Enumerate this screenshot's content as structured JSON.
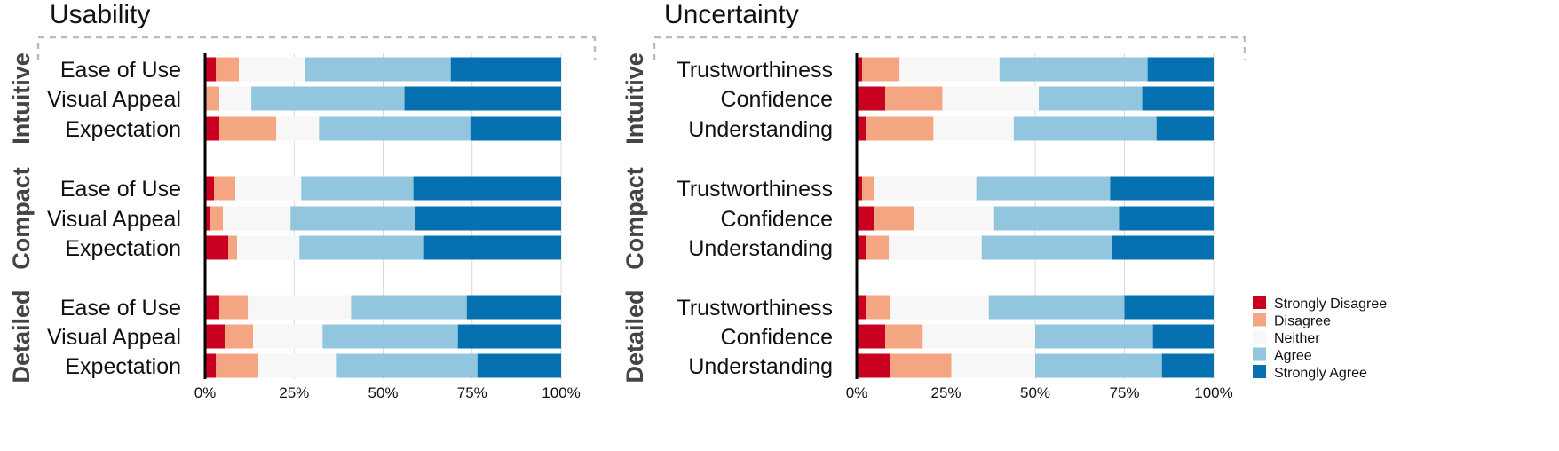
{
  "chart_data": [
    {
      "type": "bar",
      "orientation": "horizontal",
      "stacked": "percent",
      "title": "Usability",
      "xlim": [
        0,
        100
      ],
      "xticks": [
        "0%",
        "25%",
        "50%",
        "75%",
        "100%"
      ],
      "grid": true,
      "groups": [
        {
          "label": "Intuitive",
          "rows": [
            {
              "label": "Ease of Use",
              "values": [
                3,
                6.5,
                18.5,
                41,
                31
              ]
            },
            {
              "label": "Visual Appeal",
              "values": [
                0,
                4,
                9,
                43,
                44
              ]
            },
            {
              "label": "Expectation",
              "values": [
                4,
                16,
                12,
                42.5,
                25.5
              ]
            }
          ]
        },
        {
          "label": "Compact",
          "rows": [
            {
              "label": "Ease of Use",
              "values": [
                2.5,
                6,
                18.5,
                31.5,
                41.5
              ]
            },
            {
              "label": "Visual Appeal",
              "values": [
                1.5,
                3.5,
                19,
                35,
                41
              ]
            },
            {
              "label": "Expectation",
              "values": [
                6.5,
                2.5,
                17.5,
                35,
                38.5
              ]
            }
          ]
        },
        {
          "label": "Detailed",
          "rows": [
            {
              "label": "Ease of Use",
              "values": [
                4,
                8,
                29,
                32.5,
                26.5
              ]
            },
            {
              "label": "Visual Appeal",
              "values": [
                5.5,
                8,
                19.5,
                38,
                29
              ]
            },
            {
              "label": "Expectation",
              "values": [
                3,
                12,
                22,
                39.5,
                23.5
              ]
            }
          ]
        }
      ]
    },
    {
      "type": "bar",
      "orientation": "horizontal",
      "stacked": "percent",
      "title": "Uncertainty",
      "xlim": [
        0,
        100
      ],
      "xticks": [
        "0%",
        "25%",
        "50%",
        "75%",
        "100%"
      ],
      "grid": true,
      "groups": [
        {
          "label": "Intuitive",
          "rows": [
            {
              "label": "Trustworthiness",
              "values": [
                1.5,
                10.5,
                28,
                41.5,
                18.5
              ]
            },
            {
              "label": "Confidence",
              "values": [
                8,
                16,
                27,
                29,
                20
              ]
            },
            {
              "label": "Understanding",
              "values": [
                2.5,
                19,
                22.5,
                40,
                16
              ]
            }
          ]
        },
        {
          "label": "Compact",
          "rows": [
            {
              "label": "Trustworthiness",
              "values": [
                1.5,
                3.5,
                28.5,
                37.5,
                29
              ]
            },
            {
              "label": "Confidence",
              "values": [
                5,
                11,
                22.5,
                35,
                26.5
              ]
            },
            {
              "label": "Understanding",
              "values": [
                2.5,
                6.5,
                26,
                36.5,
                28.5
              ]
            }
          ]
        },
        {
          "label": "Detailed",
          "rows": [
            {
              "label": "Trustworthiness",
              "values": [
                2.5,
                7,
                27.5,
                38,
                25
              ]
            },
            {
              "label": "Confidence",
              "values": [
                8,
                10.5,
                31.5,
                33,
                17
              ]
            },
            {
              "label": "Understanding",
              "values": [
                9.5,
                17,
                23.5,
                35.5,
                14.5
              ]
            }
          ]
        }
      ]
    }
  ],
  "legend": {
    "placement": "right",
    "items": [
      {
        "label": "Strongly Disagree",
        "color": "#ca0020"
      },
      {
        "label": "Disagree",
        "color": "#f4a582"
      },
      {
        "label": "Neither",
        "color": "#f7f7f7"
      },
      {
        "label": "Agree",
        "color": "#92c5de"
      },
      {
        "label": "Strongly Agree",
        "color": "#0571b0"
      }
    ]
  },
  "colors": {
    "axis": "#000000",
    "grid": "#d9d9d9",
    "bracket": "#bbbbbb"
  }
}
